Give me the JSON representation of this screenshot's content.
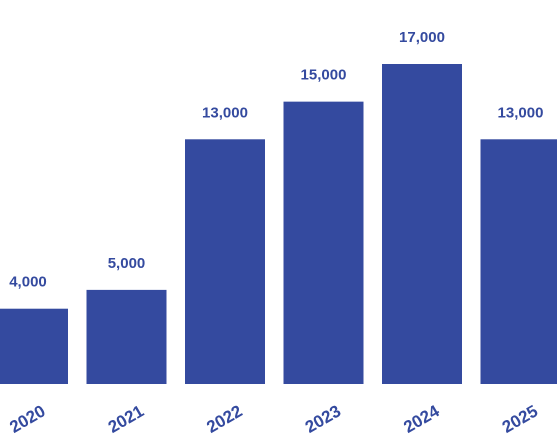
{
  "chart_data": {
    "type": "bar",
    "categories": [
      "2020",
      "2021",
      "2022",
      "2023",
      "2024",
      "2025"
    ],
    "values": [
      4000,
      5000,
      13000,
      15000,
      17000,
      13000
    ],
    "value_labels": [
      "4,000",
      "5,000",
      "13,000",
      "15,000",
      "17,000",
      "13,000"
    ],
    "color": "#344a9f"
  }
}
